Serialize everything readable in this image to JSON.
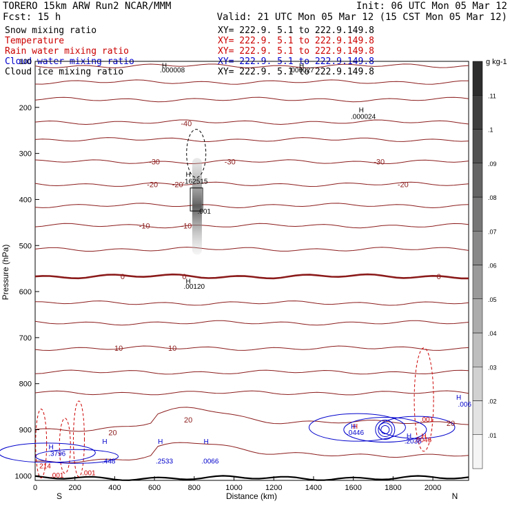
{
  "header": {
    "title_left": "TORERO  15km ARW   Run2    NCAR/MMM",
    "init": "Init: 06 UTC Mon 05 Mar 12",
    "fcst": "Fcst:   15 h",
    "valid": "Valid: 21 UTC Mon 05 Mar 12 (15 CST Mon 05 Mar 12)"
  },
  "legend": [
    {
      "name": "Snow mixing ratio",
      "xy": "XY= 222.9.   5.1 to 222.9.149.8",
      "color": "#000000"
    },
    {
      "name": "Temperature",
      "xy": "XY= 222.9.   5.1 to 222.9.149.8",
      "color": "#cc0000"
    },
    {
      "name": "Rain water mixing ratio",
      "xy": "XY= 222.9.   5.1 to 222.9.149.8",
      "color": "#cc0000"
    },
    {
      "name": "Cloud water mixing ratio",
      "xy": "XY= 222.9.   5.1 to 222.9.149.8",
      "color": "#0000cc"
    },
    {
      "name": "Cloud ice mixing ratio",
      "xy": "XY= 222.9.   5.1 to 222.9.149.8",
      "color": "#000000"
    }
  ],
  "chart_data": {
    "type": "cross-section contour",
    "xlabel": "Distance (km)",
    "ylabel": "Pressure (hPa)",
    "xlim": [
      0,
      2180
    ],
    "ylim_pressure": [
      100,
      1010
    ],
    "x_ticks": [
      0,
      200,
      400,
      600,
      800,
      1000,
      1200,
      1400,
      1600,
      1800,
      2000
    ],
    "y_ticks": [
      100,
      200,
      300,
      400,
      500,
      600,
      700,
      800,
      900,
      1000
    ],
    "end_labels": {
      "left": "S",
      "right": "N"
    },
    "isotherms": [
      {
        "label": "-40",
        "x": 760,
        "p": 235
      },
      {
        "label": "-30",
        "x": 600,
        "p": 318
      },
      {
        "label": "-30",
        "x": 980,
        "p": 318
      },
      {
        "label": "-30",
        "x": 1730,
        "p": 318
      },
      {
        "label": "-20",
        "x": 590,
        "p": 367
      },
      {
        "label": "-20'",
        "x": 720,
        "p": 367
      },
      {
        "label": "-20",
        "x": 1850,
        "p": 367
      },
      {
        "label": "-10",
        "x": 550,
        "p": 457
      },
      {
        "label": "-10",
        "x": 760,
        "p": 457
      },
      {
        "label": "0",
        "x": 440,
        "p": 567
      },
      {
        "label": "0",
        "x": 750,
        "p": 567
      },
      {
        "label": "0",
        "x": 2030,
        "p": 567
      },
      {
        "label": "10",
        "x": 420,
        "p": 723
      },
      {
        "label": "10",
        "x": 690,
        "p": 723
      },
      {
        "label": "20",
        "x": 390,
        "p": 906
      },
      {
        "label": "20",
        "x": 770,
        "p": 878
      },
      {
        "label": "20",
        "x": 2090,
        "p": 886
      }
    ],
    "extrema": [
      {
        "label": "H",
        "x": 650,
        "p": 108
      },
      {
        "label": ".000008",
        "x": 690,
        "p": 118
      },
      {
        "label": "H",
        "x": 1340,
        "p": 108
      },
      {
        "label": ".000027",
        "x": 1340,
        "p": 118
      },
      {
        "label": "H",
        "x": 1640,
        "p": 205
      },
      {
        "label": ".000024",
        "x": 1650,
        "p": 219
      },
      {
        "label": "H",
        "x": 770,
        "p": 345
      },
      {
        "label": "162515",
        "x": 810,
        "p": 360
      },
      {
        "label": ".001",
        "x": 850,
        "p": 425
      },
      {
        "label": "H",
        "x": 770,
        "p": 577
      },
      {
        "label": ".00120",
        "x": 800,
        "p": 588
      }
    ],
    "rain_labels": [
      {
        "label": ".001",
        "x": 1970,
        "p": 877
      },
      {
        "label": ".0046",
        "x": 1950,
        "p": 921
      },
      {
        "label": "H",
        "x": 1955,
        "p": 913
      },
      {
        "label": "214",
        "x": 50,
        "p": 978
      },
      {
        "label": ".001",
        "x": 270,
        "p": 993
      },
      {
        "label": ".001",
        "x": 110,
        "p": 998
      },
      {
        "label": "H",
        "x": 1610,
        "p": 892
      }
    ],
    "cloud_water_labels": [
      {
        "label": "H",
        "x": 80,
        "p": 937
      },
      {
        "label": ".3796",
        "x": 110,
        "p": 951
      },
      {
        "label": "H",
        "x": 350,
        "p": 925
      },
      {
        "label": ".448",
        "x": 370,
        "p": 967
      },
      {
        "label": "H",
        "x": 630,
        "p": 925
      },
      {
        "label": ".2533",
        "x": 650,
        "p": 967
      },
      {
        "label": "H",
        "x": 860,
        "p": 925
      },
      {
        "label": ".0066",
        "x": 880,
        "p": 967
      },
      {
        "label": "H",
        "x": 1600,
        "p": 892
      },
      {
        "label": ".0446",
        "x": 1610,
        "p": 905
      },
      {
        "label": "H",
        "x": 1880,
        "p": 913
      },
      {
        "label": ".2036",
        "x": 1900,
        "p": 924
      },
      {
        "label": "H",
        "x": 2130,
        "p": 829
      },
      {
        "label": ".006",
        "x": 2160,
        "p": 844
      }
    ],
    "colorbar": {
      "unit": "g kg-1",
      "ticks": [
        ".01",
        ".02",
        ".03",
        ".04",
        ".05",
        ".06",
        ".07",
        ".08",
        ".09",
        ".1",
        ".11"
      ]
    }
  }
}
